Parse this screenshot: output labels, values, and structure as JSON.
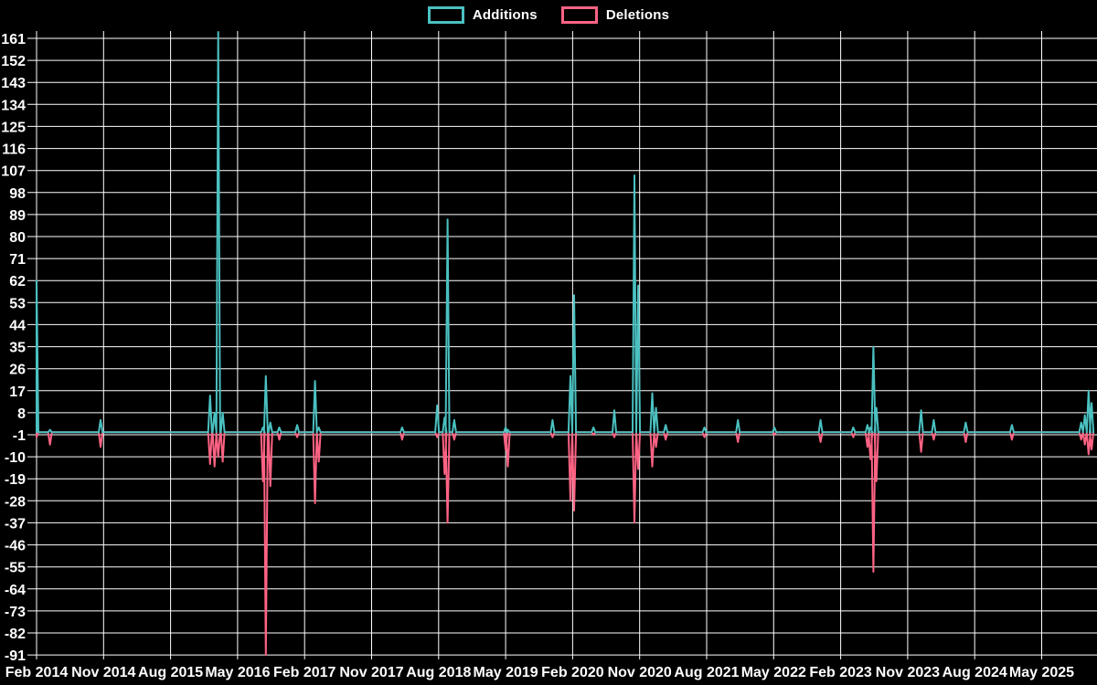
{
  "page": {
    "background_color": "#000000",
    "grid_color": "#ffffff",
    "text_color": "#ffffff"
  },
  "legend": {
    "items": [
      {
        "label": "Additions",
        "color": "#4bc0c0"
      },
      {
        "label": "Deletions",
        "color": "#ff6384"
      }
    ]
  },
  "chart_data": {
    "type": "line",
    "title": "",
    "xlabel": "",
    "ylabel": "",
    "grid": true,
    "legend_position": "top-center",
    "x_axis": {
      "tick_labels": [
        "Feb 2014",
        "Nov 2014",
        "Aug 2015",
        "May 2016",
        "Feb 2017",
        "Nov 2017",
        "Aug 2018",
        "May 2019",
        "Feb 2020",
        "Nov 2020",
        "Aug 2021",
        "May 2022",
        "Feb 2023",
        "Nov 2023",
        "Aug 2024",
        "May 2025"
      ],
      "months_per_tick": 9
    },
    "y_axis": {
      "tick_labels": [
        "161",
        "152",
        "143",
        "134",
        "125",
        "116",
        "107",
        "98",
        "89",
        "80",
        "71",
        "62",
        "53",
        "44",
        "35",
        "26",
        "17",
        "8",
        "-1",
        "-10",
        "-19",
        "-28",
        "-37",
        "-46",
        "-55",
        "-64",
        "-73",
        "-82",
        "-91"
      ],
      "min": -91,
      "max": 161,
      "step": 9
    },
    "series": [
      {
        "name": "Additions",
        "color": "#4bc0c0",
        "key": "additions"
      },
      {
        "name": "Deletions",
        "color": "#ff6384",
        "key": "deletions"
      }
    ],
    "baseline": 0,
    "t_end": 141.9,
    "events": [
      {
        "t": 0.0,
        "date": "Feb 2014",
        "additions": 62,
        "deletions": -2
      },
      {
        "t": 1.8,
        "date": "Apr 2014",
        "additions": 1,
        "deletions": -5
      },
      {
        "t": 8.6,
        "date": "Oct 2014",
        "additions": 5,
        "deletions": -6
      },
      {
        "t": 23.3,
        "date": "Jan 2016",
        "additions": 15,
        "deletions": -13
      },
      {
        "t": 23.9,
        "date": "Feb 2016",
        "additions": 8,
        "deletions": -14
      },
      {
        "t": 24.4,
        "date": "Feb 2016",
        "additions": 164,
        "deletions": -10
      },
      {
        "t": 25.0,
        "date": "Mar 2016",
        "additions": 8,
        "deletions": -12
      },
      {
        "t": 30.4,
        "date": "Aug 2016",
        "additions": 2,
        "deletions": -20
      },
      {
        "t": 30.8,
        "date": "Aug 2016",
        "additions": 23,
        "deletions": -91
      },
      {
        "t": 31.4,
        "date": "Sep 2016",
        "additions": 4,
        "deletions": -22
      },
      {
        "t": 32.6,
        "date": "Oct 2016",
        "additions": 2,
        "deletions": -3
      },
      {
        "t": 35.0,
        "date": "Jan 2017",
        "additions": 3,
        "deletions": -2
      },
      {
        "t": 37.4,
        "date": "Mar 2017",
        "additions": 21,
        "deletions": -29
      },
      {
        "t": 37.9,
        "date": "Apr 2017",
        "additions": 2,
        "deletions": -12
      },
      {
        "t": 49.1,
        "date": "Mar 2018",
        "additions": 2,
        "deletions": -3
      },
      {
        "t": 53.8,
        "date": "Jul 2018",
        "additions": 11,
        "deletions": -2
      },
      {
        "t": 54.8,
        "date": "Aug 2018",
        "additions": 6,
        "deletions": -17
      },
      {
        "t": 55.2,
        "date": "Sep 2018",
        "additions": 87,
        "deletions": -37
      },
      {
        "t": 56.1,
        "date": "Oct 2018",
        "additions": 5,
        "deletions": -3
      },
      {
        "t": 63.0,
        "date": "May 2019",
        "additions": 2,
        "deletions": -7
      },
      {
        "t": 63.3,
        "date": "May 2019",
        "additions": 1,
        "deletions": -14
      },
      {
        "t": 69.3,
        "date": "Nov 2019",
        "additions": 5,
        "deletions": -2
      },
      {
        "t": 71.7,
        "date": "Jan 2020",
        "additions": 23,
        "deletions": -28
      },
      {
        "t": 72.2,
        "date": "Feb 2020",
        "additions": 56,
        "deletions": -32
      },
      {
        "t": 74.8,
        "date": "Apr 2020",
        "additions": 2,
        "deletions": -1
      },
      {
        "t": 77.6,
        "date": "Jul 2020",
        "additions": 9,
        "deletions": -2
      },
      {
        "t": 80.3,
        "date": "Oct 2020",
        "additions": 105,
        "deletions": -37
      },
      {
        "t": 80.8,
        "date": "Nov 2020",
        "additions": 60,
        "deletions": -15
      },
      {
        "t": 82.7,
        "date": "Dec 2020",
        "additions": 16,
        "deletions": -14
      },
      {
        "t": 83.2,
        "date": "Jan 2021",
        "additions": 10,
        "deletions": -6
      },
      {
        "t": 84.5,
        "date": "Feb 2021",
        "additions": 3,
        "deletions": -3
      },
      {
        "t": 89.7,
        "date": "Aug 2021",
        "additions": 2,
        "deletions": -2
      },
      {
        "t": 94.2,
        "date": "Dec 2021",
        "additions": 5,
        "deletions": -4
      },
      {
        "t": 99.1,
        "date": "May 2022",
        "additions": 2,
        "deletions": -1
      },
      {
        "t": 105.3,
        "date": "Nov 2022",
        "additions": 5,
        "deletions": -4
      },
      {
        "t": 109.7,
        "date": "Mar 2023",
        "additions": 2,
        "deletions": -2
      },
      {
        "t": 111.6,
        "date": "May 2023",
        "additions": 3,
        "deletions": -6
      },
      {
        "t": 112.0,
        "date": "Jun 2023",
        "additions": 2,
        "deletions": -11
      },
      {
        "t": 112.4,
        "date": "Jun 2023",
        "additions": 35,
        "deletions": -57
      },
      {
        "t": 112.8,
        "date": "Jun 2023",
        "additions": 10,
        "deletions": -20
      },
      {
        "t": 118.8,
        "date": "Jan 2024",
        "additions": 9,
        "deletions": -8
      },
      {
        "t": 120.5,
        "date": "Feb 2024",
        "additions": 5,
        "deletions": -3
      },
      {
        "t": 124.8,
        "date": "Jun 2024",
        "additions": 4,
        "deletions": -4
      },
      {
        "t": 131.0,
        "date": "Jan 2025",
        "additions": 3,
        "deletions": -3
      },
      {
        "t": 140.3,
        "date": "Oct 2025",
        "additions": 4,
        "deletions": -3
      },
      {
        "t": 140.8,
        "date": "Nov 2025",
        "additions": 7,
        "deletions": -5
      },
      {
        "t": 141.3,
        "date": "Nov 2025",
        "additions": 17,
        "deletions": -9
      },
      {
        "t": 141.7,
        "date": "Dec 2025",
        "additions": 12,
        "deletions": -7
      }
    ]
  }
}
